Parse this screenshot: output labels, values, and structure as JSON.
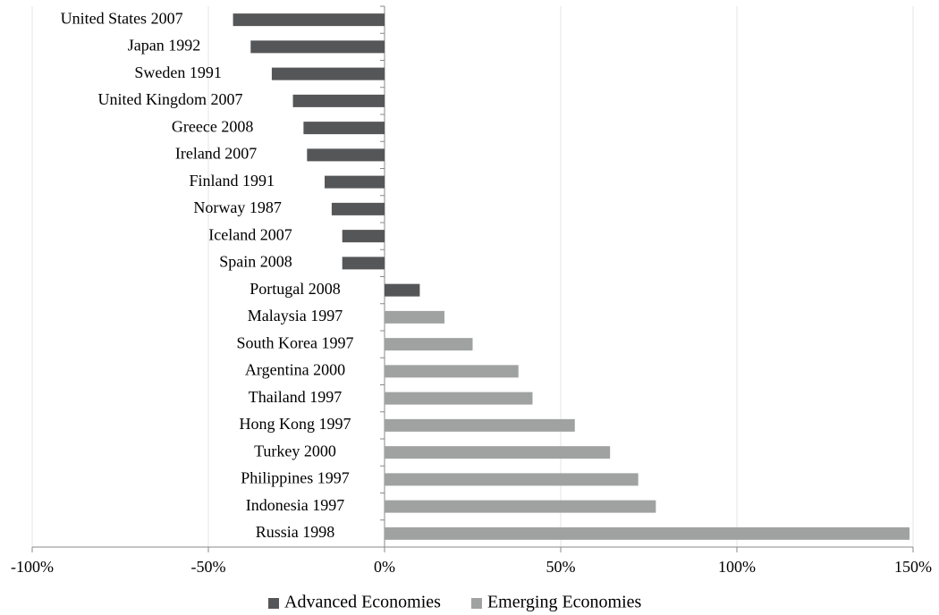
{
  "chart_data": {
    "type": "bar",
    "orientation": "horizontal",
    "categories": [
      "United States 2007",
      "Japan 1992",
      "Sweden 1991",
      "United Kingdom 2007",
      "Greece 2008",
      "Ireland 2007",
      "Finland 1991",
      "Norway 1987",
      "Iceland 2007",
      "Spain 2008",
      "Portugal 2008",
      "Malaysia 1997",
      "South Korea 1997",
      "Argentina 2000",
      "Thailand 1997",
      "Hong Kong 1997",
      "Turkey 2000",
      "Philippines 1997",
      "Indonesia 1997",
      "Russia 1998"
    ],
    "series": [
      {
        "name": "Advanced Economies",
        "color": "#555657",
        "values": [
          -43,
          -38,
          -32,
          -26,
          -23,
          -22,
          -17,
          -15,
          -12,
          -12,
          10,
          null,
          null,
          null,
          null,
          null,
          null,
          null,
          null,
          null
        ]
      },
      {
        "name": "Emerging Economies",
        "color": "#a0a2a2",
        "values": [
          null,
          null,
          null,
          null,
          null,
          null,
          null,
          null,
          null,
          null,
          null,
          17,
          25,
          38,
          42,
          54,
          64,
          72,
          77,
          149
        ]
      }
    ],
    "xlim": [
      -100,
      150
    ],
    "xticks": [
      {
        "value": -100,
        "label": "-100%"
      },
      {
        "value": -50,
        "label": "-50%"
      },
      {
        "value": 0,
        "label": "0%"
      },
      {
        "value": 50,
        "label": "50%"
      },
      {
        "value": 100,
        "label": "100%"
      },
      {
        "value": 150,
        "label": "150%"
      }
    ],
    "grid": true,
    "legend": "bottom"
  }
}
